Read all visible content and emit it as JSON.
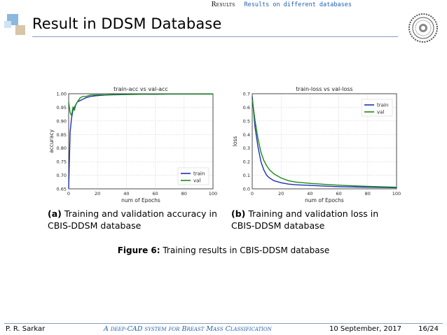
{
  "header": {
    "section": "Results",
    "subsection": "Results on different databases"
  },
  "slide": {
    "title": "Result in DDSM Database"
  },
  "figures": {
    "a": {
      "label": "(a)",
      "text_line1": "Training and validation accuracy in",
      "text_line2": "CBIS-DDSM database"
    },
    "b": {
      "label": "(b)",
      "text_line1": "Training and validation loss in",
      "text_line2": "CBIS-DDSM database"
    },
    "caption_label": "Figure 6:",
    "caption_text": "Training results in CBIS-DDSM database"
  },
  "footer": {
    "author": "P. R. Sarkar",
    "talk_title": "A deep-CAD system for Breast Mass Classification",
    "date": "10 September, 2017",
    "page": "16/24"
  },
  "colors": {
    "train": "#1f2fb4",
    "val": "#1a8a1a",
    "accent": "#1f5fb3",
    "deco_light": "#cfe3f5",
    "deco_dark": "#8ab8e0",
    "deco_tan": "#d8c6a8"
  },
  "chart_data": [
    {
      "type": "line",
      "title": "train-acc vs val-acc",
      "xlabel": "num of Epochs",
      "ylabel": "accuracy",
      "xlim": [
        0,
        100
      ],
      "ylim": [
        0.65,
        1.0
      ],
      "xticks": [
        "0",
        "20",
        "40",
        "60",
        "80",
        "100"
      ],
      "yticks": [
        "0.65",
        "0.70",
        "0.75",
        "0.80",
        "0.85",
        "0.90",
        "0.95",
        "1.00"
      ],
      "grid": true,
      "legend_position": "bottom-right",
      "series": [
        {
          "name": "train",
          "x": [
            0,
            1,
            2,
            3,
            4,
            5,
            6,
            8,
            10,
            12,
            15,
            20,
            25,
            30,
            40,
            50,
            60,
            70,
            80,
            90,
            100
          ],
          "values": [
            0.65,
            0.86,
            0.91,
            0.94,
            0.95,
            0.96,
            0.97,
            0.975,
            0.98,
            0.985,
            0.99,
            0.993,
            0.995,
            0.996,
            0.997,
            0.998,
            0.998,
            0.999,
            0.999,
            0.999,
            0.999
          ]
        },
        {
          "name": "val",
          "x": [
            0,
            1,
            2,
            3,
            4,
            5,
            6,
            8,
            10,
            12,
            15,
            20,
            25,
            30,
            40,
            50,
            60,
            70,
            80,
            90,
            100
          ],
          "values": [
            0.97,
            0.93,
            0.92,
            0.95,
            0.94,
            0.96,
            0.97,
            0.985,
            0.99,
            0.99,
            0.995,
            0.996,
            0.996,
            0.997,
            0.998,
            0.998,
            0.999,
            0.999,
            0.999,
            0.999,
            0.999
          ]
        }
      ]
    },
    {
      "type": "line",
      "title": "train-loss vs val-loss",
      "xlabel": "num of Epochs",
      "ylabel": "loss",
      "xlim": [
        0,
        100
      ],
      "ylim": [
        0.0,
        0.7
      ],
      "xticks": [
        "0",
        "20",
        "40",
        "60",
        "80",
        "100"
      ],
      "yticks": [
        "0.0",
        "0.1",
        "0.2",
        "0.3",
        "0.4",
        "0.5",
        "0.6",
        "0.7"
      ],
      "grid": true,
      "legend_position": "top-right",
      "series": [
        {
          "name": "train",
          "x": [
            0,
            2,
            4,
            6,
            8,
            10,
            12,
            15,
            20,
            25,
            30,
            40,
            50,
            60,
            70,
            80,
            90,
            100
          ],
          "values": [
            0.68,
            0.45,
            0.31,
            0.2,
            0.14,
            0.1,
            0.08,
            0.06,
            0.045,
            0.035,
            0.03,
            0.025,
            0.02,
            0.016,
            0.014,
            0.012,
            0.01,
            0.008
          ]
        },
        {
          "name": "val",
          "x": [
            0,
            2,
            4,
            6,
            8,
            10,
            12,
            15,
            20,
            25,
            30,
            40,
            50,
            60,
            70,
            80,
            90,
            100
          ],
          "values": [
            0.66,
            0.5,
            0.37,
            0.27,
            0.21,
            0.17,
            0.14,
            0.11,
            0.08,
            0.06,
            0.05,
            0.04,
            0.033,
            0.027,
            0.022,
            0.018,
            0.015,
            0.012
          ]
        }
      ]
    }
  ]
}
